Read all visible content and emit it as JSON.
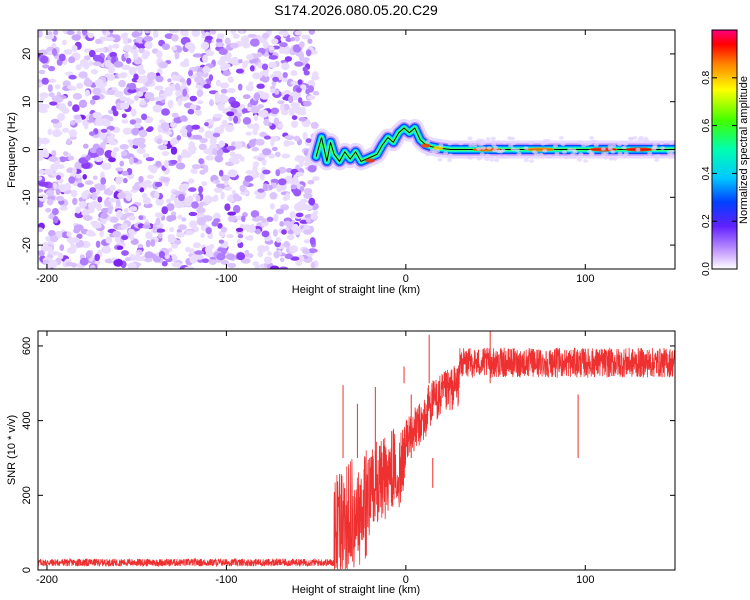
{
  "title": "S174.2026.080.05.20.C29",
  "chart_data": [
    {
      "type": "heatmap",
      "name": "spectrogram",
      "xlabel": "Height of straight line (km)",
      "ylabel": "Frequency (Hz)",
      "xlim": [
        -205,
        150
      ],
      "ylim": [
        -25,
        25
      ],
      "xticks": [
        -200,
        -100,
        0,
        100
      ],
      "yticks": [
        -20,
        -10,
        0,
        10,
        20
      ],
      "noise_region_x": [
        -205,
        -50
      ],
      "transition_region_x": [
        -50,
        12
      ],
      "signal_line": {
        "x": [
          -50,
          -47,
          -44,
          -42,
          -40,
          -37,
          -34,
          -31,
          -28,
          -25,
          -22,
          -19,
          -16,
          -13,
          -10,
          -7,
          -4,
          -1,
          2,
          5,
          8,
          11,
          14,
          18,
          25,
          40,
          60,
          80,
          100,
          120,
          140,
          150
        ],
        "y": [
          -1.5,
          2.5,
          -2.5,
          1.5,
          -1.0,
          -2.5,
          -0.5,
          -2.0,
          -0.5,
          -2.5,
          -2.0,
          -1.5,
          -1.0,
          1.0,
          2.5,
          1.5,
          3.5,
          4.5,
          3.5,
          4.5,
          2.0,
          1.0,
          0.6,
          0.3,
          0.0,
          0.0,
          0.0,
          0.0,
          0.0,
          0.0,
          0.0,
          0.0
        ]
      },
      "colorbar": {
        "label": "Normalized spectral amplitude",
        "range": [
          0.0,
          1.0
        ],
        "ticks": [
          "0.0",
          "0.2",
          "0.4",
          "0.6",
          "0.8"
        ],
        "tick_values": [
          0.0,
          0.2,
          0.4,
          0.6,
          0.8
        ]
      }
    },
    {
      "type": "line",
      "name": "snr",
      "xlabel": "Height of straight line (km)",
      "ylabel": "SNR (10 * v/v)",
      "xlim": [
        -205,
        150
      ],
      "ylim": [
        0,
        640
      ],
      "xticks": [
        -200,
        -100,
        0,
        100
      ],
      "yticks": [
        0,
        200,
        400,
        600
      ],
      "color": "#ee3030",
      "segments": [
        {
          "x": [
            -205,
            -40
          ],
          "base": 20,
          "noise": 10
        },
        {
          "x": [
            -40,
            -20
          ],
          "base": 150,
          "noise": 150
        },
        {
          "x": [
            -20,
            0
          ],
          "base": 260,
          "noise": 110
        },
        {
          "x": [
            0,
            12
          ],
          "base": 380,
          "noise": 60
        },
        {
          "x": [
            12,
            30
          ],
          "base": 470,
          "noise": 60
        },
        {
          "x": [
            30,
            150
          ],
          "base": 555,
          "noise": 40
        }
      ],
      "notable_points": {
        "x": [
          -35,
          -27,
          -17,
          -1,
          3,
          13,
          15,
          47,
          96
        ],
        "y": [
          495,
          445,
          490,
          545,
          470,
          630,
          220,
          650,
          470
        ]
      }
    }
  ]
}
